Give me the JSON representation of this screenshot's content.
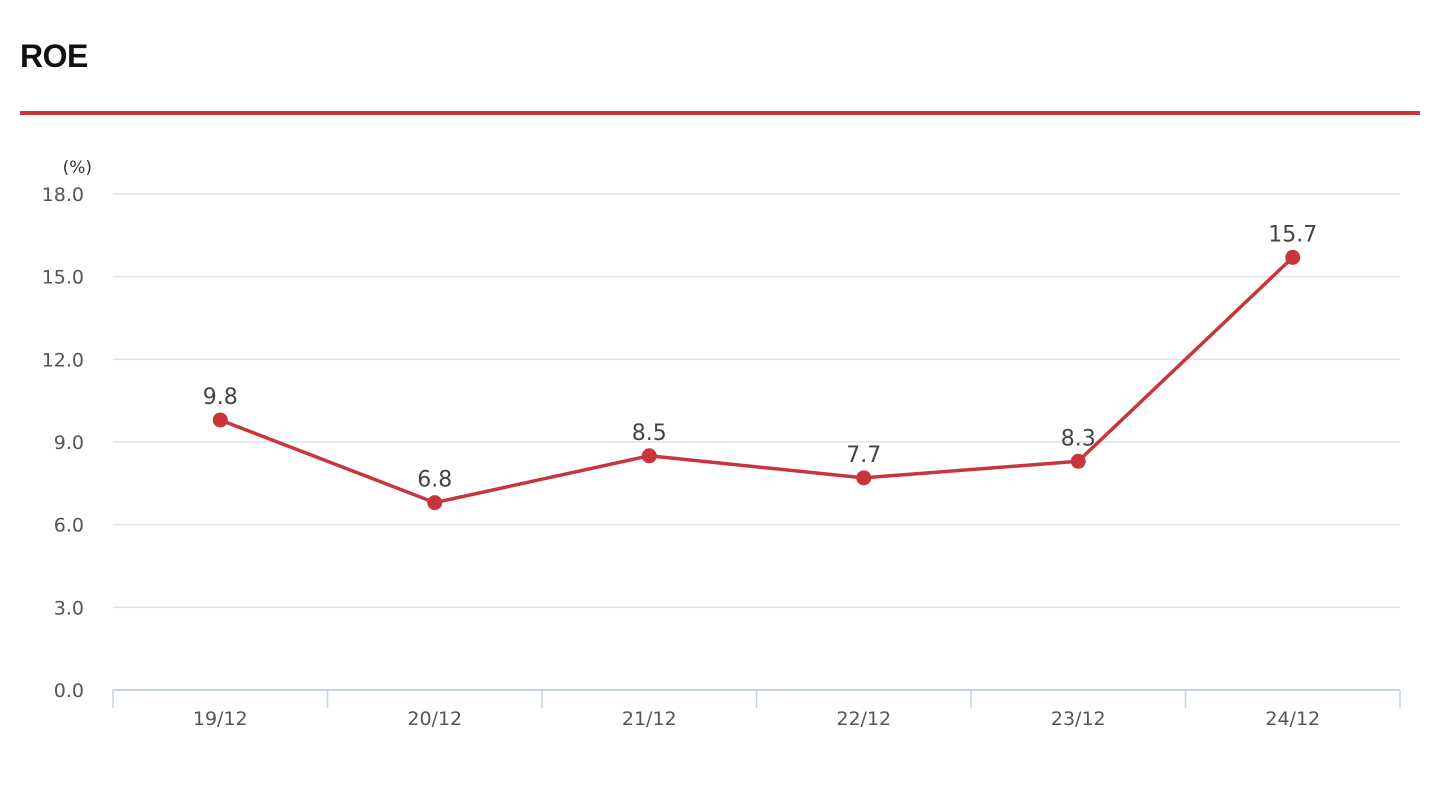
{
  "header": {
    "title": "ROE"
  },
  "colors": {
    "accent": "#c8363c",
    "line": "#c8363c",
    "grid": "#dde3ea",
    "axis": "#c5d3e3"
  },
  "chart_data": {
    "type": "line",
    "title": "ROE",
    "ylabel": "(%)",
    "xlabel": "",
    "categories": [
      "19/12",
      "20/12",
      "21/12",
      "22/12",
      "23/12",
      "24/12"
    ],
    "series": [
      {
        "values": [
          9.8,
          6.8,
          8.5,
          7.7,
          8.3,
          15.7
        ],
        "data_labels": [
          "9.8",
          "6.8",
          "8.5",
          "7.7",
          "8.3",
          "15.7"
        ]
      }
    ],
    "ylim": [
      0,
      18
    ],
    "yticks": [
      "0.0",
      "3.0",
      "6.0",
      "9.0",
      "12.0",
      "15.0",
      "18.0"
    ],
    "grid": true,
    "legend": "none"
  }
}
